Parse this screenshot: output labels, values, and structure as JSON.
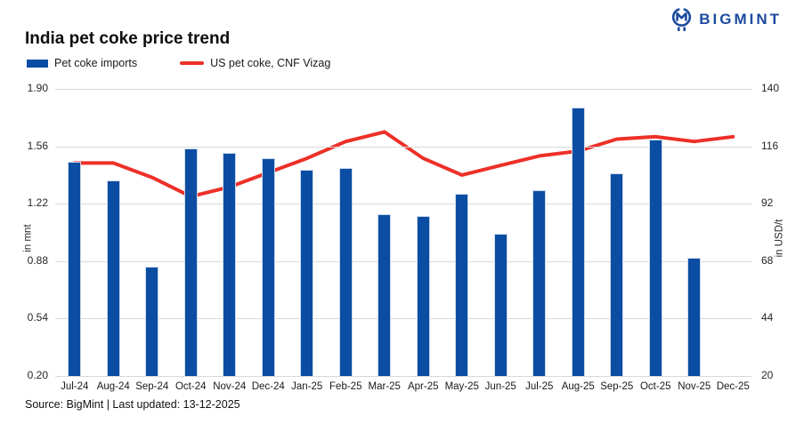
{
  "logo": {
    "text": "BIGMINT"
  },
  "header": {
    "title": "India pet coke price trend"
  },
  "legend": [
    {
      "label": "Pet coke imports",
      "type": "bar",
      "color": "#0b4da2"
    },
    {
      "label": "US pet coke, CNF Vizag",
      "type": "line",
      "color": "#ed3028"
    }
  ],
  "footer": {
    "source": "Source: BigMint | Last updated: 13-12-2025"
  },
  "chart_data": {
    "type": "bar+line",
    "title": "India pet coke price trend",
    "categories": [
      "Jul-24",
      "Aug-24",
      "Sep-24",
      "Oct-24",
      "Nov-24",
      "Dec-24",
      "Jan-25",
      "Feb-25",
      "Mar-25",
      "Apr-25",
      "May-25",
      "Jun-25",
      "Jul-25",
      "Aug-25",
      "Sep-25",
      "Oct-25",
      "Nov-25",
      "Dec-25"
    ],
    "series": [
      {
        "name": "Pet coke imports",
        "type": "bar",
        "axis": "left",
        "unit": "mnt",
        "color": "#0b4da2",
        "values": [
          1.47,
          1.36,
          0.85,
          1.55,
          1.52,
          1.49,
          1.42,
          1.43,
          1.16,
          1.15,
          1.28,
          1.04,
          1.3,
          1.79,
          1.4,
          1.6,
          0.9,
          null
        ]
      },
      {
        "name": "US pet coke, CNF Vizag",
        "type": "line",
        "axis": "right",
        "unit": "USD/t",
        "color": "#ed3028",
        "values": [
          109,
          109,
          103,
          95,
          99,
          105,
          111,
          118,
          122,
          111,
          104,
          108,
          112,
          114,
          119,
          120,
          118,
          120
        ]
      }
    ],
    "left_axis": {
      "label": "in mnt",
      "min": 0.2,
      "max": 1.9,
      "tick_labels": [
        "1.90",
        "1.56",
        "1.22",
        "0.88",
        "0.54",
        "0.20"
      ]
    },
    "right_axis": {
      "label": "in USD/t",
      "min": 20,
      "max": 140,
      "tick_labels": [
        "140",
        "116",
        "92",
        "68",
        "44",
        "20"
      ]
    },
    "grid": "horizontal",
    "legend_position": "top-left"
  }
}
